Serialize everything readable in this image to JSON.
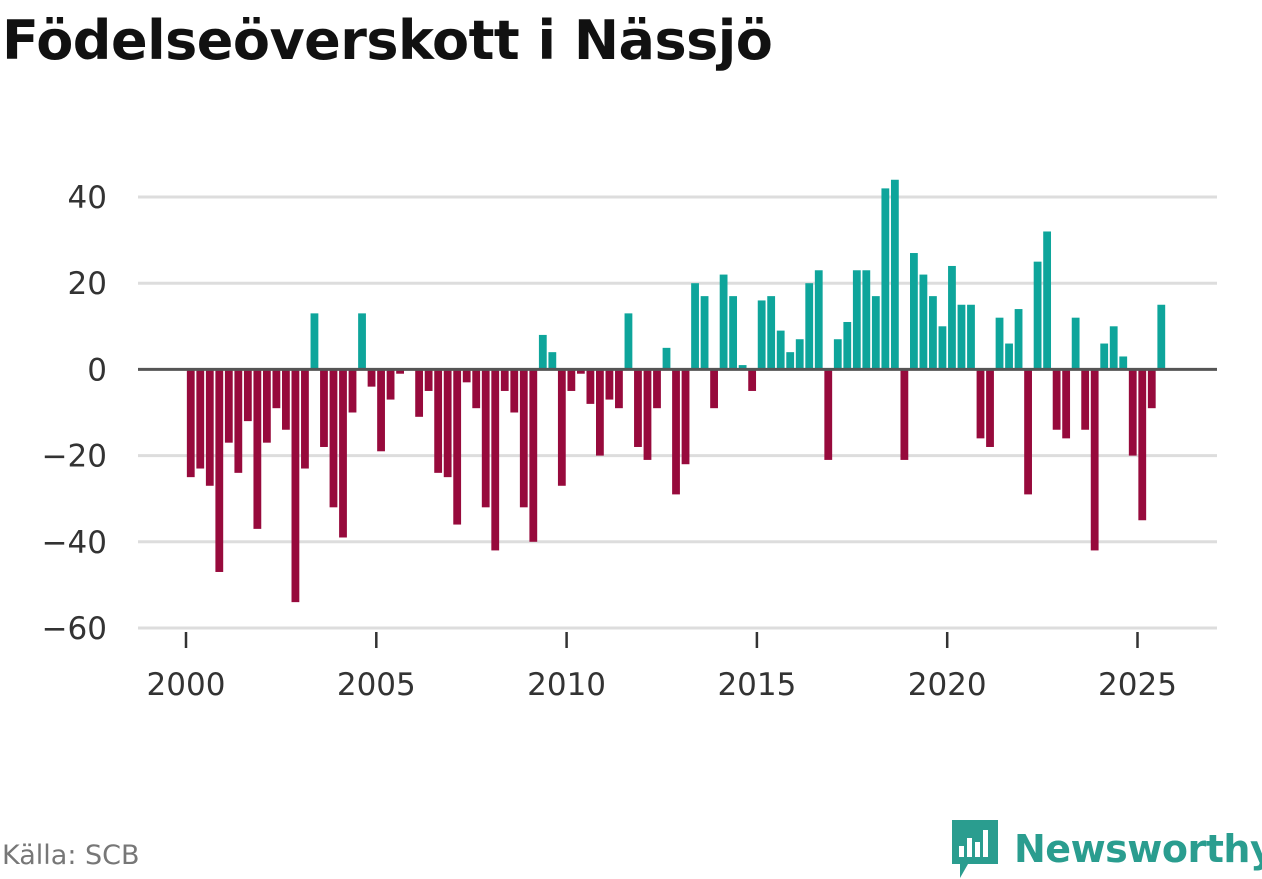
{
  "header": {
    "title": "Födelseöverskott i Nässjö"
  },
  "footer": {
    "source": "Källa: SCB",
    "brand": "Newsworthy"
  },
  "colors": {
    "positive": "#0ea59b",
    "negative": "#970a3c",
    "grid": "#dddddd",
    "zero_line": "#555555",
    "brand": "#2a9d8f"
  },
  "chart_data": {
    "type": "bar",
    "title": "Födelseöverskott i Nässjö",
    "frequency": "quarterly",
    "start": "2000 Q1",
    "end": "2025 Q3",
    "xlabel": "",
    "ylabel": "",
    "ylim": [
      -60,
      45
    ],
    "xlim": [
      2000,
      2026
    ],
    "yticks": [
      40,
      20,
      0,
      -20,
      -40,
      -60
    ],
    "ytick_labels": [
      "40",
      "20",
      "0",
      "−20",
      "−40",
      "−60"
    ],
    "xticks": [
      2000,
      2005,
      2010,
      2015,
      2020,
      2025
    ],
    "xtick_labels": [
      "2000",
      "2005",
      "2010",
      "2015",
      "2020",
      "2025"
    ],
    "grid": true,
    "values": [
      -25,
      -23,
      -27,
      -47,
      -17,
      -24,
      -12,
      -37,
      -17,
      -9,
      -14,
      -54,
      -23,
      13,
      -18,
      -32,
      -39,
      -10,
      13,
      -4,
      -19,
      -7,
      -1,
      0,
      -11,
      -5,
      -24,
      -25,
      -36,
      -3,
      -9,
      -32,
      -42,
      -5,
      -10,
      -32,
      -40,
      8,
      4,
      -27,
      -5,
      -1,
      -8,
      -20,
      -7,
      -9,
      13,
      -18,
      -21,
      -9,
      5,
      -29,
      -22,
      20,
      17,
      -9,
      22,
      17,
      1,
      -5,
      16,
      17,
      9,
      4,
      7,
      20,
      23,
      -21,
      7,
      11,
      23,
      23,
      17,
      42,
      44,
      -21,
      27,
      22,
      17,
      10,
      24,
      15,
      15,
      -16,
      -18,
      12,
      6,
      14,
      -29,
      25,
      32,
      -14,
      -16,
      12,
      -14,
      -42,
      6,
      10,
      3,
      -20,
      -35,
      -9,
      15
    ]
  }
}
